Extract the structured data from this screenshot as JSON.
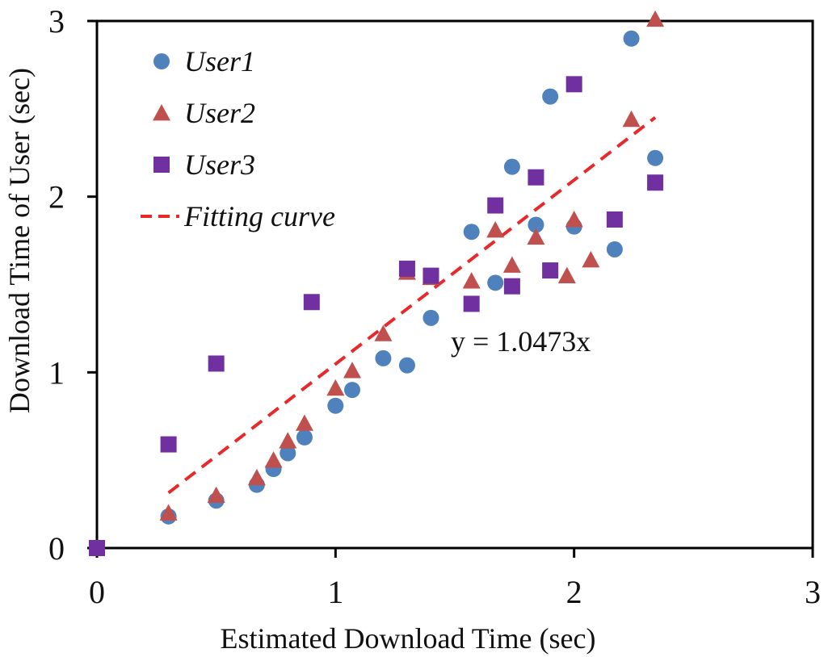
{
  "chart_data": {
    "type": "scatter",
    "xlabel": "Estimated Download Time (sec)",
    "ylabel": "Download Time of  User (sec)",
    "xlim": [
      0,
      3
    ],
    "ylim": [
      0,
      3
    ],
    "xticks": [
      "0",
      "1",
      "2",
      "3"
    ],
    "yticks": [
      "0",
      "1",
      "2",
      "3"
    ],
    "grid": false,
    "legend_position": "top-left",
    "annotation": "y = 1.0473x",
    "series": [
      {
        "name": "User1",
        "marker": "circle",
        "color": "#4f81bd",
        "points": [
          [
            0.3,
            0.18
          ],
          [
            0.5,
            0.27
          ],
          [
            0.67,
            0.36
          ],
          [
            0.74,
            0.45
          ],
          [
            0.8,
            0.54
          ],
          [
            0.87,
            0.63
          ],
          [
            1.0,
            0.81
          ],
          [
            1.07,
            0.9
          ],
          [
            1.2,
            1.08
          ],
          [
            1.3,
            1.04
          ],
          [
            1.4,
            1.31
          ],
          [
            1.57,
            1.8
          ],
          [
            1.67,
            1.51
          ],
          [
            1.74,
            2.17
          ],
          [
            1.84,
            1.84
          ],
          [
            1.9,
            2.57
          ],
          [
            2.0,
            1.83
          ],
          [
            2.17,
            1.7
          ],
          [
            2.24,
            2.9
          ],
          [
            2.34,
            2.22
          ]
        ]
      },
      {
        "name": "User2",
        "marker": "triangle",
        "color": "#c0504d",
        "points": [
          [
            0.3,
            0.2
          ],
          [
            0.5,
            0.3
          ],
          [
            0.67,
            0.4
          ],
          [
            0.74,
            0.5
          ],
          [
            0.8,
            0.61
          ],
          [
            0.87,
            0.71
          ],
          [
            1.0,
            0.91
          ],
          [
            1.07,
            1.01
          ],
          [
            1.2,
            1.22
          ],
          [
            1.3,
            1.57
          ],
          [
            1.4,
            1.54
          ],
          [
            1.57,
            1.52
          ],
          [
            1.67,
            1.81
          ],
          [
            1.74,
            1.61
          ],
          [
            1.84,
            1.77
          ],
          [
            1.97,
            1.55
          ],
          [
            2.0,
            1.87
          ],
          [
            2.07,
            1.64
          ],
          [
            2.24,
            2.44
          ],
          [
            2.34,
            3.01
          ]
        ]
      },
      {
        "name": "User3",
        "marker": "square",
        "color": "#7030a0",
        "points": [
          [
            0.0,
            0.0
          ],
          [
            0.3,
            0.59
          ],
          [
            0.5,
            1.05
          ],
          [
            0.9,
            1.4
          ],
          [
            1.3,
            1.59
          ],
          [
            1.4,
            1.55
          ],
          [
            1.57,
            1.39
          ],
          [
            1.67,
            1.95
          ],
          [
            1.74,
            1.49
          ],
          [
            1.84,
            2.11
          ],
          [
            1.9,
            1.58
          ],
          [
            2.0,
            2.64
          ],
          [
            2.17,
            1.87
          ],
          [
            2.34,
            2.08
          ]
        ]
      },
      {
        "name": "Fitting curve",
        "marker": "dashed-line",
        "color": "#e8292b",
        "slope": 1.0473,
        "x_range": [
          0.3,
          2.34
        ]
      }
    ]
  }
}
